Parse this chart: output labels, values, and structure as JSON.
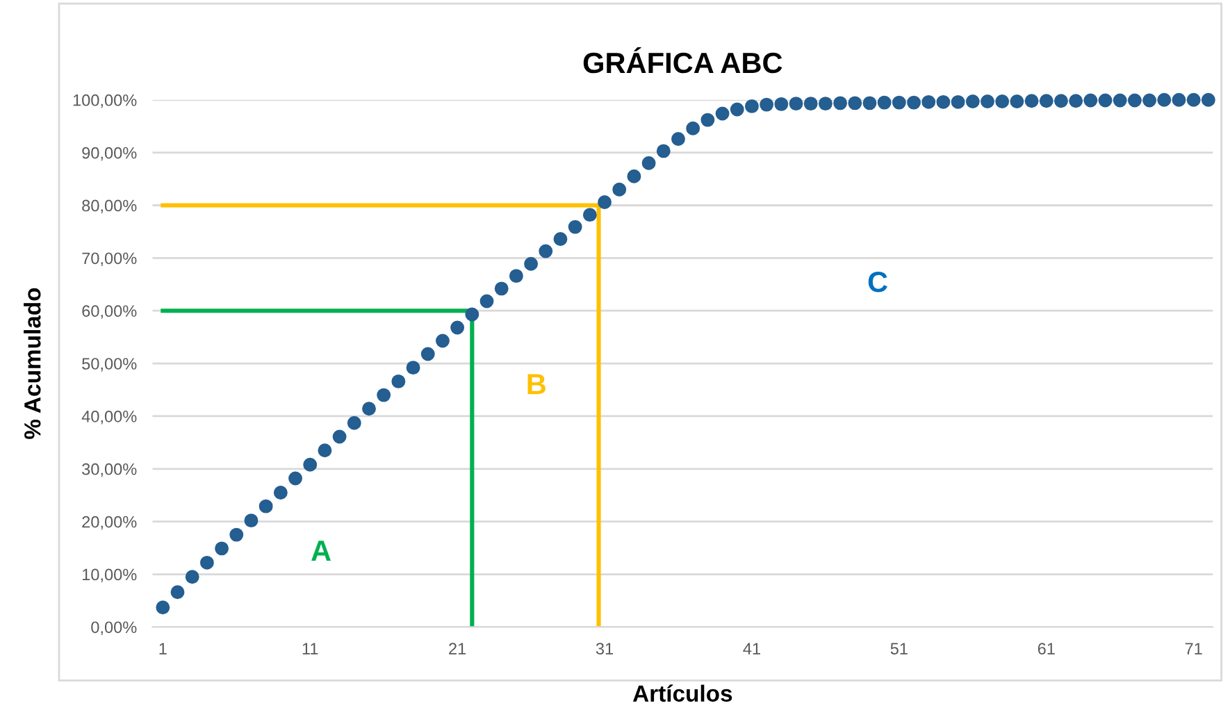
{
  "chart_data": {
    "type": "scatter",
    "title": "GRÁFICA ABC",
    "xlabel": "Artículos",
    "ylabel": "% Acumulado",
    "x": [
      1,
      2,
      3,
      4,
      5,
      6,
      7,
      8,
      9,
      10,
      11,
      12,
      13,
      14,
      15,
      16,
      17,
      18,
      19,
      20,
      21,
      22,
      23,
      24,
      25,
      26,
      27,
      28,
      29,
      30,
      31,
      32,
      33,
      34,
      35,
      36,
      37,
      38,
      39,
      40,
      41,
      42,
      43,
      44,
      45,
      46,
      47,
      48,
      49,
      50,
      51,
      52,
      53,
      54,
      55,
      56,
      57,
      58,
      59,
      60,
      61,
      62,
      63,
      64,
      65,
      66,
      67,
      68,
      69,
      70,
      71,
      72
    ],
    "series": [
      {
        "color": "#255e91",
        "marker": "circle",
        "values": [
          3.7,
          6.6,
          9.5,
          12.2,
          14.9,
          17.5,
          20.2,
          22.9,
          25.5,
          28.2,
          30.8,
          33.5,
          36.1,
          38.7,
          41.4,
          44.0,
          46.6,
          49.2,
          51.8,
          54.3,
          56.8,
          59.3,
          61.8,
          64.2,
          66.6,
          68.9,
          71.3,
          73.6,
          75.9,
          78.2,
          80.6,
          83.0,
          85.5,
          88.0,
          90.3,
          92.6,
          94.6,
          96.2,
          97.4,
          98.2,
          98.8,
          99.1,
          99.2,
          99.3,
          99.3,
          99.3,
          99.4,
          99.4,
          99.4,
          99.5,
          99.5,
          99.5,
          99.6,
          99.6,
          99.6,
          99.7,
          99.7,
          99.7,
          99.7,
          99.8,
          99.8,
          99.8,
          99.8,
          99.9,
          99.9,
          99.9,
          99.9,
          99.9,
          100.0,
          100.0,
          100.0,
          100.0
        ]
      },
      {
        "type": "line",
        "color": "#00b050",
        "x": [
          1,
          22,
          22
        ],
        "values": [
          60,
          60,
          0
        ]
      },
      {
        "type": "line",
        "color": "#ffc000",
        "x": [
          1,
          30.6,
          30.6
        ],
        "values": [
          80,
          80,
          0
        ]
      }
    ],
    "annotations": [
      "A",
      "B",
      "C"
    ],
    "xlim": [
      0.3,
      72.3
    ],
    "xticks": [
      1,
      11,
      21,
      31,
      41,
      51,
      61,
      71
    ],
    "ylim": [
      0,
      100
    ],
    "yticks": [
      {
        "value": 0,
        "label": "0,00%"
      },
      {
        "value": 10,
        "label": "10,00%"
      },
      {
        "value": 20,
        "label": "20,00%"
      },
      {
        "value": 30,
        "label": "30,00%"
      },
      {
        "value": 40,
        "label": "40,00%"
      },
      {
        "value": 50,
        "label": "50,00%"
      },
      {
        "value": 60,
        "label": "60,00%"
      },
      {
        "value": 70,
        "label": "70,00%"
      },
      {
        "value": 80,
        "label": "80,00%"
      },
      {
        "value": 90,
        "label": "90,00%"
      },
      {
        "value": 100,
        "label": "100,00%"
      }
    ],
    "grid": "y",
    "legend": false
  }
}
